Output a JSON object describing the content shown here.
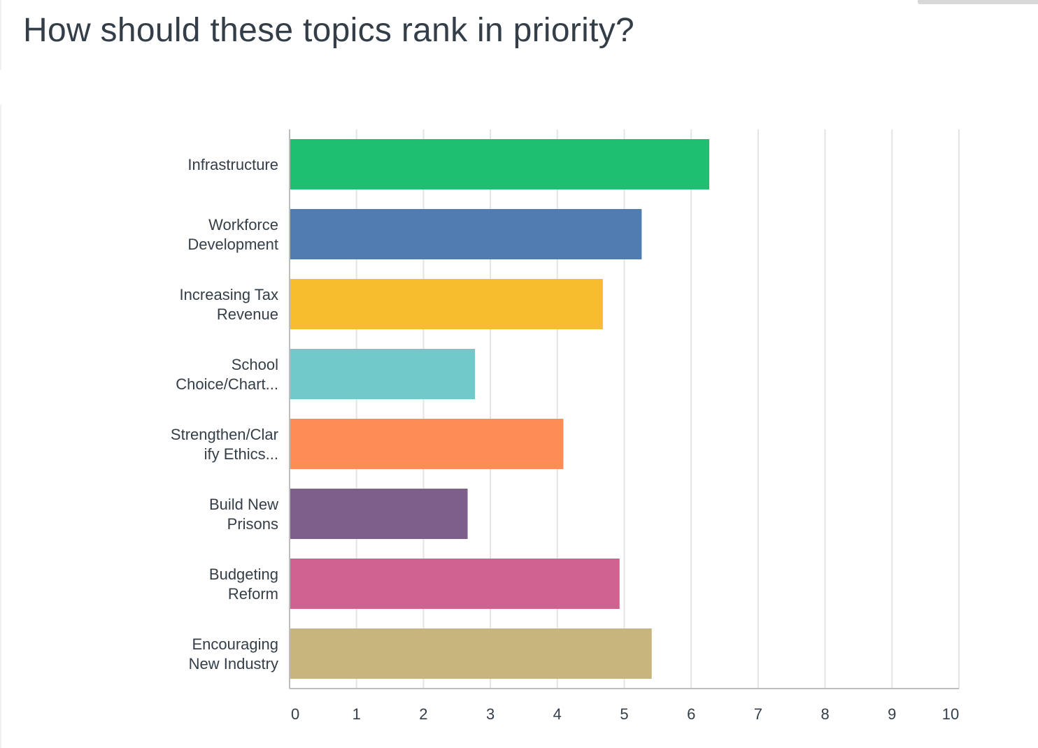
{
  "title": "How should these topics rank in priority?",
  "chart_data": {
    "type": "bar",
    "orientation": "horizontal",
    "title": "How should these topics rank in priority?",
    "categories": [
      [
        "Infrastructure"
      ],
      [
        "Workforce",
        "Development"
      ],
      [
        "Increasing Tax",
        "Revenue"
      ],
      [
        "School",
        "Choice/Chart..."
      ],
      [
        "Strengthen/Clar",
        "ify Ethics..."
      ],
      [
        "Build New",
        "Prisons"
      ],
      [
        "Budgeting",
        "Reform"
      ],
      [
        "Encouraging",
        "New Industry"
      ]
    ],
    "values": [
      6.27,
      5.26,
      4.68,
      2.77,
      4.09,
      2.66,
      4.93,
      5.41
    ],
    "colors": [
      "#1fbf71",
      "#507cb2",
      "#f7bd2e",
      "#72c9ca",
      "#fd8c57",
      "#7e5f8c",
      "#d0628f",
      "#c7b57d"
    ],
    "xlim": [
      0,
      10
    ],
    "xticks": [
      "0",
      "1",
      "2",
      "3",
      "4",
      "5",
      "6",
      "7",
      "8",
      "9",
      "10"
    ],
    "grid": true,
    "legend": "none"
  }
}
